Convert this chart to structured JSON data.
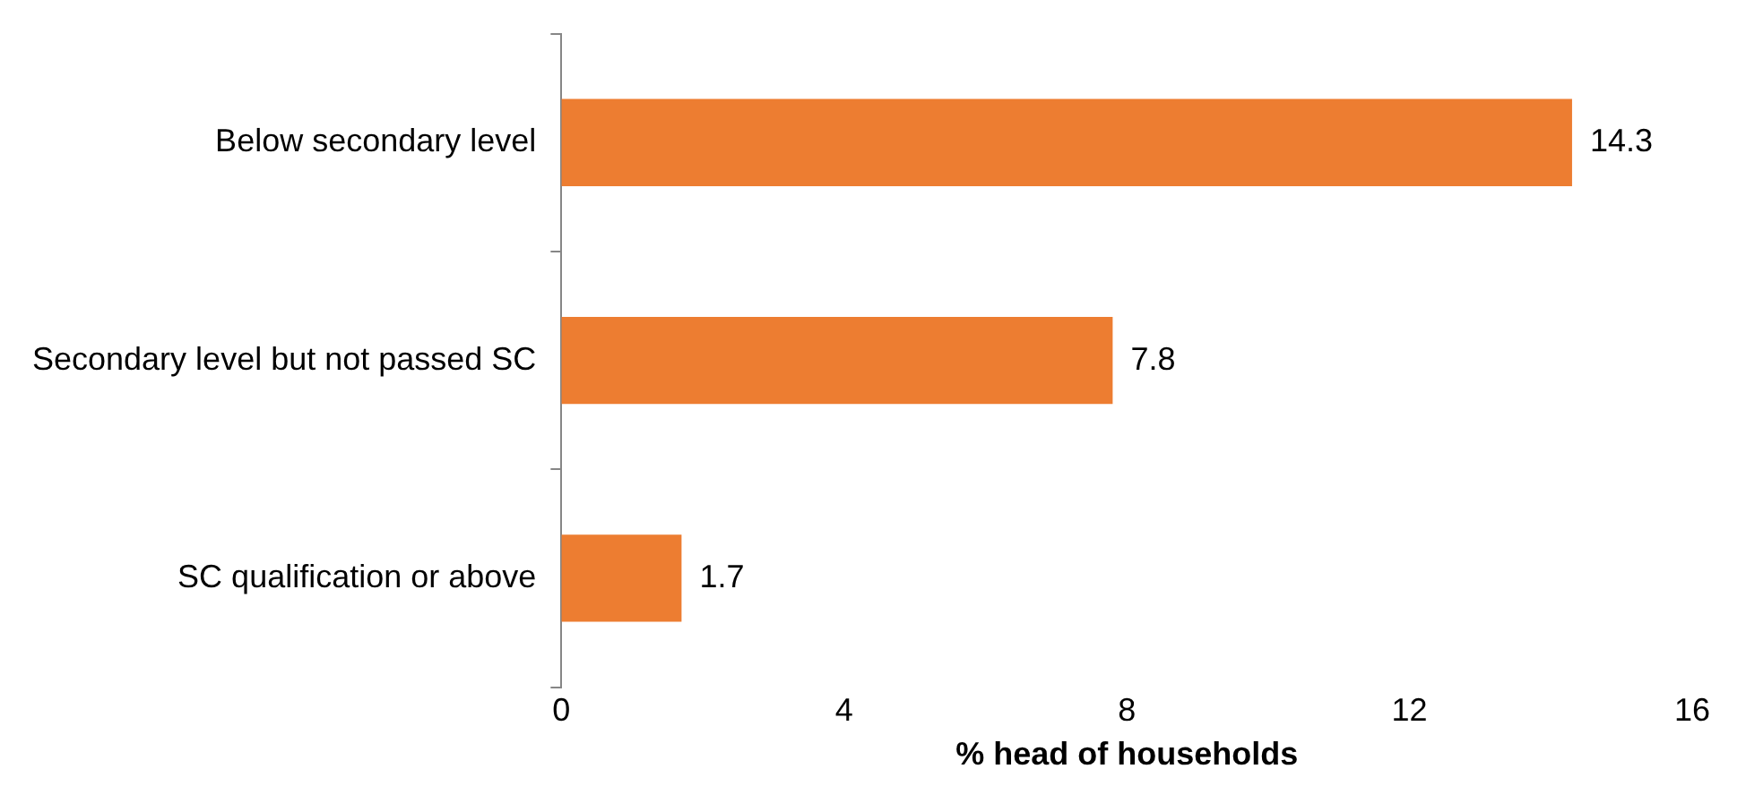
{
  "chart_data": {
    "type": "bar",
    "orientation": "horizontal",
    "xlabel": "% head of households",
    "categories": [
      "Below secondary level",
      "Secondary level but not passed SC",
      "SC qualification or above"
    ],
    "values": [
      14.3,
      7.8,
      1.7
    ],
    "color": "#ed7d31",
    "xlim": [
      0,
      16
    ],
    "xticks": [
      0,
      4,
      8,
      12,
      16
    ],
    "grid": false,
    "legend": false,
    "data_labels": true
  }
}
